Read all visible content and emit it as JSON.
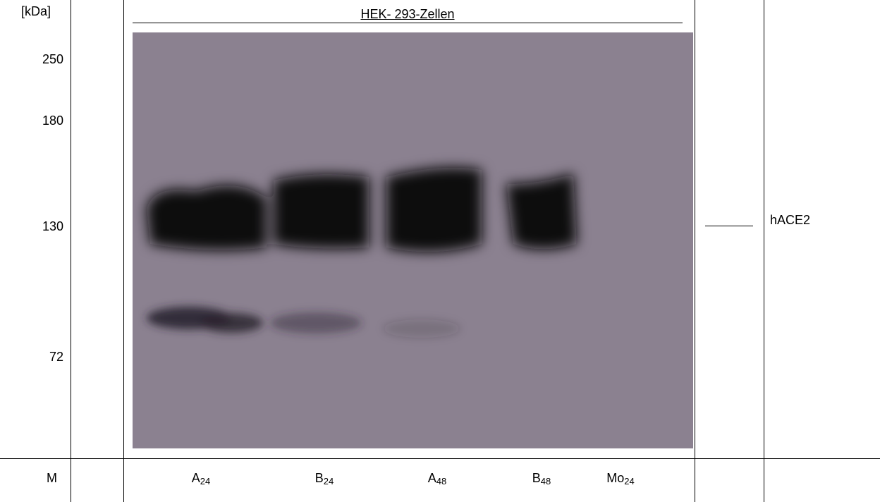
{
  "unit_label": "[kDa]",
  "marker_sizes": [
    "250",
    "180",
    "130",
    "72"
  ],
  "title": "HEK- 293-Zellen",
  "band_label": "hACE2",
  "marker_lane_label": "M",
  "lanes": [
    {
      "letter": "A",
      "sub": "24"
    },
    {
      "letter": "B",
      "sub": "24"
    },
    {
      "letter": "A",
      "sub": "48"
    },
    {
      "letter": "B",
      "sub": "48"
    },
    {
      "letter": "Mo",
      "sub": "24"
    }
  ]
}
